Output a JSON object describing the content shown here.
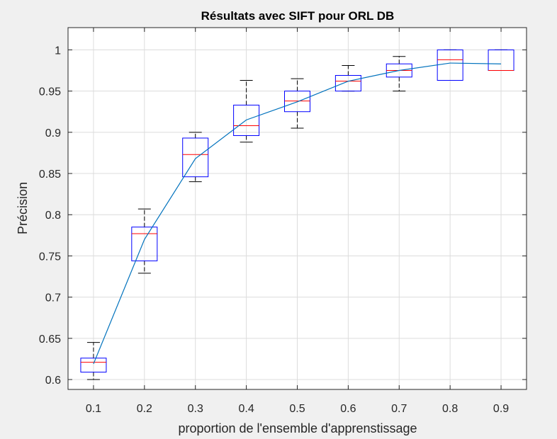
{
  "colors": {
    "figure_bg": "#f0f0f0",
    "axes_bg": "#ffffff",
    "grid": "#dcdcdc",
    "axis": "#262626",
    "box": "#0000ff",
    "median": "#ff0000",
    "whisker": "#000000",
    "mean_line": "#0072bd"
  },
  "chart_data": {
    "type": "box",
    "title": "Résultats avec SIFT pour ORL DB",
    "xlabel": "proportion de l'ensemble d'apprenstissage",
    "ylabel": "Précision",
    "grid": true,
    "xlim": [
      0.05,
      0.95
    ],
    "ylim": [
      0.588,
      1.027
    ],
    "xticks": [
      "0.1",
      "0.2",
      "0.3",
      "0.4",
      "0.5",
      "0.6",
      "0.7",
      "0.8",
      "0.9"
    ],
    "yticks": [
      "0.6",
      "0.65",
      "0.7",
      "0.75",
      "0.8",
      "0.85",
      "0.9",
      "0.95",
      "1"
    ],
    "boxes": [
      {
        "x": 0.1,
        "whisker_low": 0.6,
        "q1": 0.609,
        "median": 0.621,
        "q3": 0.626,
        "whisker_high": 0.645
      },
      {
        "x": 0.2,
        "whisker_low": 0.729,
        "q1": 0.744,
        "median": 0.777,
        "q3": 0.785,
        "whisker_high": 0.807
      },
      {
        "x": 0.3,
        "whisker_low": 0.84,
        "q1": 0.846,
        "median": 0.873,
        "q3": 0.893,
        "whisker_high": 0.9
      },
      {
        "x": 0.4,
        "whisker_low": 0.888,
        "q1": 0.896,
        "median": 0.908,
        "q3": 0.933,
        "whisker_high": 0.963
      },
      {
        "x": 0.5,
        "whisker_low": 0.905,
        "q1": 0.925,
        "median": 0.938,
        "q3": 0.95,
        "whisker_high": 0.965
      },
      {
        "x": 0.6,
        "whisker_low": 0.95,
        "q1": 0.95,
        "median": 0.962,
        "q3": 0.969,
        "whisker_high": 0.981
      },
      {
        "x": 0.7,
        "whisker_low": 0.95,
        "q1": 0.967,
        "median": 0.975,
        "q3": 0.983,
        "whisker_high": 0.992
      },
      {
        "x": 0.8,
        "whisker_low": 0.963,
        "q1": 0.963,
        "median": 0.988,
        "q3": 1.0,
        "whisker_high": 1.0
      },
      {
        "x": 0.9,
        "whisker_low": 0.975,
        "q1": 0.975,
        "median": 0.975,
        "q3": 1.0,
        "whisker_high": 1.0
      }
    ],
    "mean_line": {
      "x": [
        0.1,
        0.2,
        0.3,
        0.4,
        0.5,
        0.6,
        0.7,
        0.8,
        0.9
      ],
      "y": [
        0.619,
        0.77,
        0.868,
        0.915,
        0.937,
        0.962,
        0.975,
        0.984,
        0.983
      ]
    }
  }
}
